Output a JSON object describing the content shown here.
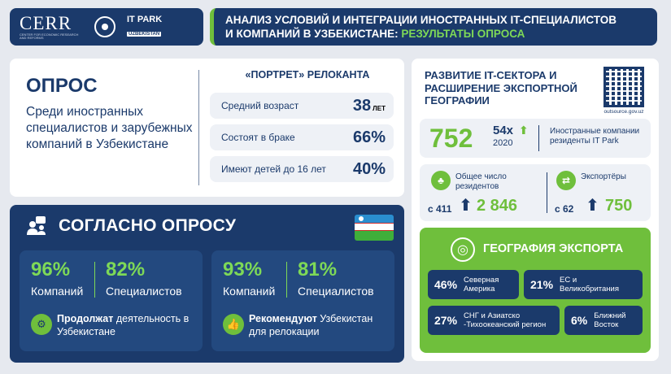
{
  "header": {
    "cerr": {
      "name": "CERR",
      "subtitle": "CENTER FOR ECONOMIC RESEARCH AND REFORMS"
    },
    "itpark": {
      "line1": "IT PARK",
      "line2": "UZBEKISTAN"
    },
    "title_line1": "АНАЛИЗ УСЛОВИЙ И ИНТЕГРАЦИИ ИНОСТРАННЫХ IT-СПЕЦИАЛИСТОВ",
    "title_line2_prefix": "И КОМПАНИЙ В УЗБЕКИСТАНЕ: ",
    "title_line2_highlight": "РЕЗУЛЬТАТЫ ОПРОСА"
  },
  "survey": {
    "title": "ОПРОС",
    "description": "Среди иностранных специалистов и зарубежных компаний в Узбекистане",
    "portrait_title": "«ПОРТРЕТ» РЕЛОКАНТА",
    "rows": [
      {
        "label": "Средний возраст",
        "value": "38",
        "unit": "ЛЕТ"
      },
      {
        "label": "Состоят в браке",
        "value": "66%",
        "unit": ""
      },
      {
        "label": "Имеют детей до 16 лет",
        "value": "40%",
        "unit": ""
      }
    ]
  },
  "agree": {
    "title": "СОГЛАСНО ОПРОСУ",
    "cards": [
      {
        "pct1": "96%",
        "lbl1": "Компаний",
        "pct2": "82%",
        "lbl2": "Специалистов",
        "bold": "Продолжат",
        "rest": " деятельность в Узбекистане"
      },
      {
        "pct1": "93%",
        "lbl1": "Компаний",
        "pct2": "81%",
        "lbl2": "Специалистов",
        "bold": "Рекомендуют",
        "rest": " Узбекистан для релокации"
      }
    ]
  },
  "it_sector": {
    "title": "РАЗВИТИЕ IT-СЕКТОРА И РАСШИРЕНИЕ ЭКСПОРТНОЙ ГЕОГРАФИИ",
    "qr_url": "outsource.gov.uz",
    "foreign": {
      "count": "752",
      "multiplier": "54x",
      "year": "2020",
      "label": "Иностранные компании резиденты IT Park"
    },
    "residents": {
      "label": "Общее число резидентов",
      "from": "с 411",
      "to": "2 846"
    },
    "exporters": {
      "label": "Экспортёры",
      "from": "с 62",
      "to": "750"
    }
  },
  "geography": {
    "title": "ГЕОГРАФИЯ ЭКСПОРТА",
    "items": [
      {
        "pct": "46%",
        "region": "Северная Америка"
      },
      {
        "pct": "21%",
        "region": "ЕС и Великобритания"
      },
      {
        "pct": "27%",
        "region": "СНГ и Азиатско -Тихоокеанский регион"
      },
      {
        "pct": "6%",
        "region": "Ближний Восток"
      }
    ]
  }
}
